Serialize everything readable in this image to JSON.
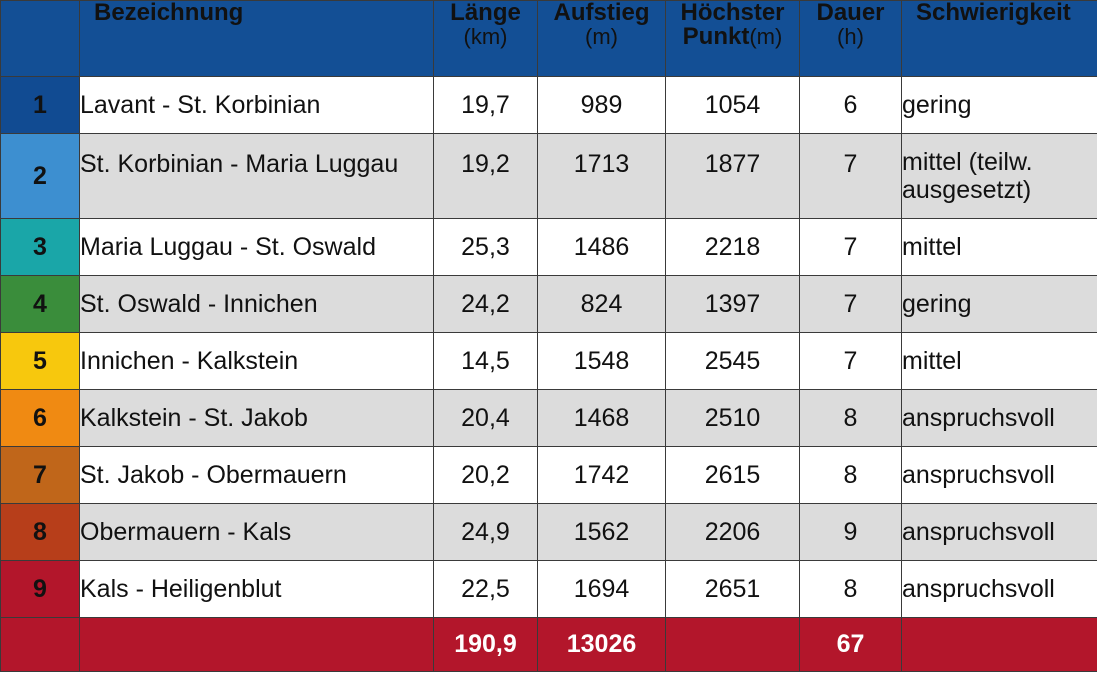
{
  "header": {
    "name": "Bezeichnung",
    "length": "Länge",
    "length_unit": "(km)",
    "ascent": "Aufstieg",
    "ascent_unit": "(m)",
    "highest_line1": "Höchster",
    "highest_line2": "Punkt",
    "highest_unit": "(m)",
    "duration": "Dauer",
    "duration_unit": "(h)",
    "difficulty": "Schwierigkeit"
  },
  "stage_colors": [
    "#114b92",
    "#3d8fd0",
    "#1aa6a8",
    "#3a8d3b",
    "#f7c80d",
    "#f08a12",
    "#c0661a",
    "#b73e1a",
    "#b3162b"
  ],
  "rows": [
    {
      "num": "1",
      "name": "Lavant - St. Korbinian",
      "length": "19,7",
      "ascent": "989",
      "highest": "1054",
      "duration": "6",
      "difficulty": "gering"
    },
    {
      "num": "2",
      "name": "St. Korbinian - Maria Luggau",
      "length": "19,2",
      "ascent": "1713",
      "highest": "1877",
      "duration": "7",
      "difficulty": "mittel (teilw. ausgesetzt)"
    },
    {
      "num": "3",
      "name": "Maria Luggau - St. Oswald",
      "length": "25,3",
      "ascent": "1486",
      "highest": "2218",
      "duration": "7",
      "difficulty": "mittel"
    },
    {
      "num": "4",
      "name": "St. Oswald - Innichen",
      "length": "24,2",
      "ascent": "824",
      "highest": "1397",
      "duration": "7",
      "difficulty": "gering"
    },
    {
      "num": "5",
      "name": "Innichen -  Kalkstein",
      "length": "14,5",
      "ascent": "1548",
      "highest": "2545",
      "duration": "7",
      "difficulty": "mittel"
    },
    {
      "num": "6",
      "name": "Kalkstein - St. Jakob",
      "length": "20,4",
      "ascent": "1468",
      "highest": "2510",
      "duration": "8",
      "difficulty": "anspruchsvoll"
    },
    {
      "num": "7",
      "name": "St. Jakob - Obermauern",
      "length": "20,2",
      "ascent": "1742",
      "highest": "2615",
      "duration": "8",
      "difficulty": "anspruchsvoll"
    },
    {
      "num": "8",
      "name": "Obermauern - Kals",
      "length": "24,9",
      "ascent": "1562",
      "highest": "2206",
      "duration": "9",
      "difficulty": "anspruchsvoll"
    },
    {
      "num": "9",
      "name": "Kals - Heiligenblut",
      "length": "22,5",
      "ascent": "1694",
      "highest": "2651",
      "duration": "8",
      "difficulty": "anspruchsvoll"
    }
  ],
  "totals": {
    "length": "190,9",
    "ascent": "13026",
    "duration": "67"
  }
}
